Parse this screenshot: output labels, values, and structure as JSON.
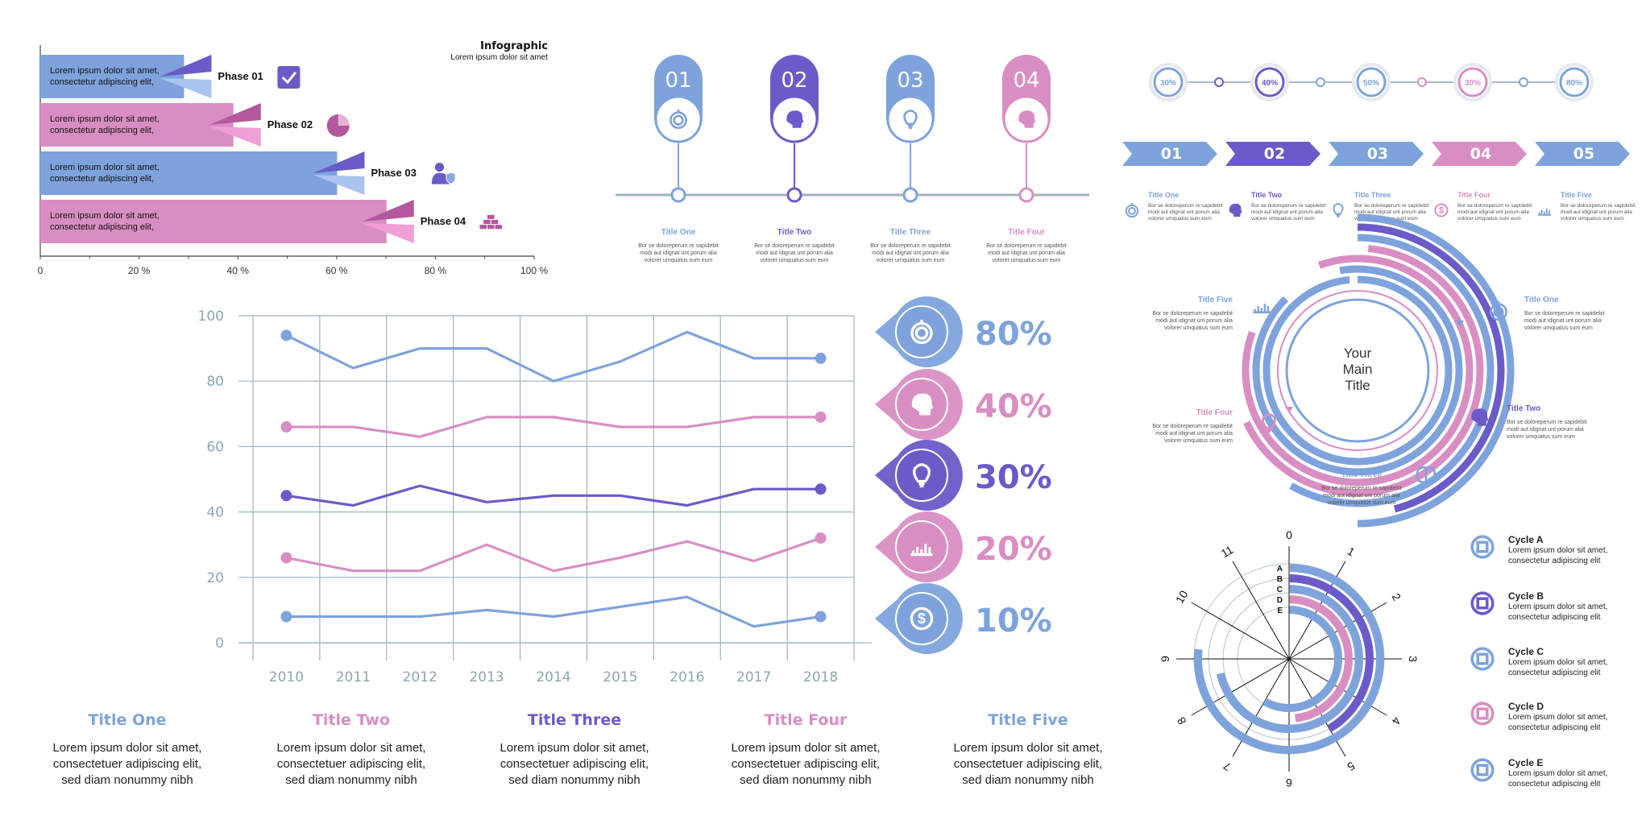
{
  "colors": {
    "blue": "#7ea3dc",
    "pink": "#d98ec3",
    "purple": "#6a5bc9",
    "light_blue": "#a9c4ef",
    "light_pink": "#ef9fd6",
    "grid": "#9fb3bb",
    "axis_text": "#8fa6ad"
  },
  "phase_chart": {
    "title": "Infographic",
    "subtitle": "Lorem ipsum dolor sit amet",
    "bar_text": [
      "Lorem ipsum dolor sit amet,",
      "consectetur adipiscing elit,"
    ],
    "icons": [
      "check-icon",
      "pie-icon",
      "user-shield-icon",
      "gold-bars-icon"
    ]
  },
  "timeline": {
    "steps": [
      {
        "num": "01",
        "title": "Title One",
        "icon": "stopwatch-icon"
      },
      {
        "num": "02",
        "title": "Title Two",
        "icon": "puzzle-head-icon"
      },
      {
        "num": "03",
        "title": "Title Three",
        "icon": "bulb-icon"
      },
      {
        "num": "04",
        "title": "Title Four",
        "icon": "puzzle-head-icon"
      }
    ],
    "body": [
      "Bor se doloreperum re sapidebit",
      "modi aut idignat unt porum alia",
      "volorer umquatus sum eum"
    ]
  },
  "steps_top_right": {
    "percents": [
      "30%",
      "40%",
      "50%",
      "30%",
      "80%"
    ],
    "arrows": [
      "01",
      "02",
      "03",
      "04",
      "05"
    ],
    "titles": [
      "Title One",
      "Title Two",
      "Title Three",
      "Title Four",
      "Title Five"
    ],
    "body": [
      "Bor se doloreperum re sapidebit",
      "modi aut idignat unt porum alia",
      "volorer umquatus sum eum"
    ]
  },
  "radial": {
    "center": [
      "Your",
      "Main",
      "Title"
    ],
    "titles": [
      "Title Five",
      "Title One",
      "Title Two",
      "Title Three",
      "Title Four"
    ],
    "body": [
      "Bor se doloreperum re sapidebit",
      "modi aut idignat unt porum alia",
      "volorer umquatus sum eum"
    ]
  },
  "legend_pins": [
    {
      "value": "80%",
      "icon": "stopwatch-icon"
    },
    {
      "value": "40%",
      "icon": "puzzle-head-icon"
    },
    {
      "value": "30%",
      "icon": "bulb-icon"
    },
    {
      "value": "20%",
      "icon": "chart-icon"
    },
    {
      "value": "10%",
      "icon": "dollar-icon"
    }
  ],
  "bottom_titles": [
    {
      "title": "Title One",
      "lines": [
        "Lorem ipsum dolor sit amet,",
        "consectetuer adipiscing elit,",
        "sed diam nonummy nibh"
      ]
    },
    {
      "title": "Title Two",
      "lines": [
        "Lorem ipsum dolor sit amet,",
        "consectetuer adipiscing elit,",
        "sed diam nonummy nibh"
      ]
    },
    {
      "title": "Title Three",
      "lines": [
        "Lorem ipsum dolor sit amet,",
        "consectetuer adipiscing elit,",
        "sed diam nonummy nibh"
      ]
    },
    {
      "title": "Title Four",
      "lines": [
        "Lorem ipsum dolor sit amet,",
        "consectetuer adipiscing elit,",
        "sed diam nonummy nibh"
      ]
    },
    {
      "title": "Title Five",
      "lines": [
        "Lorem ipsum dolor sit amet,",
        "consectetuer adipiscing elit,",
        "sed diam nonummy nibh"
      ]
    }
  ],
  "cycles": [
    {
      "name": "Cycle A",
      "lines": [
        "Lorem ipsum dolor sit amet,",
        "consectetur adipiscing elit"
      ],
      "icon": "satellite-icon"
    },
    {
      "name": "Cycle B",
      "lines": [
        "Lorem ipsum dolor sit amet,",
        "consectetur adipiscing elit"
      ],
      "icon": "hand-coin-icon"
    },
    {
      "name": "Cycle C",
      "lines": [
        "Lorem ipsum dolor sit amet,",
        "consectetur adipiscing elit"
      ],
      "icon": "handshake-icon"
    },
    {
      "name": "Cycle D",
      "lines": [
        "Lorem ipsum dolor sit amet,",
        "consectetur adipiscing elit"
      ],
      "icon": "magnifier-doc-icon"
    },
    {
      "name": "Cycle E",
      "lines": [
        "Lorem ipsum dolor sit amet,",
        "consectetur adipiscing elit"
      ],
      "icon": "hanging-sign-icon"
    }
  ],
  "chart_data": [
    {
      "type": "bar",
      "orientation": "horizontal",
      "categories": [
        "Phase 01",
        "Phase 02",
        "Phase 03",
        "Phase 04"
      ],
      "values": [
        34,
        44,
        65,
        75
      ],
      "xlim": [
        0,
        100
      ],
      "xticks": [
        "0",
        "20 %",
        "40 %",
        "60 %",
        "80 %",
        "100 %"
      ],
      "bar_colors": [
        "#7ea3dc",
        "#d98ec3",
        "#7ea3dc",
        "#d98ec3"
      ]
    },
    {
      "type": "line",
      "x": [
        "2010",
        "2011",
        "2012",
        "2013",
        "2014",
        "2015",
        "2016",
        "2017",
        "2018"
      ],
      "ylim": [
        0,
        100
      ],
      "yticks": [
        "0",
        "20",
        "40",
        "60",
        "80",
        "100"
      ],
      "grid": true,
      "series": [
        {
          "color": "#7ea3dc",
          "values": [
            94,
            84,
            90,
            90,
            80,
            86,
            95,
            87,
            87
          ]
        },
        {
          "color": "#d98ec3",
          "values": [
            66,
            66,
            63,
            69,
            69,
            66,
            66,
            69,
            69
          ]
        },
        {
          "color": "#6a5bc9",
          "values": [
            45,
            42,
            48,
            43,
            45,
            45,
            42,
            47,
            47
          ]
        },
        {
          "color": "#d98ec3",
          "values": [
            26,
            22,
            22,
            30,
            22,
            26,
            31,
            25,
            32
          ]
        },
        {
          "color": "#7ea3dc",
          "values": [
            8,
            8,
            8,
            10,
            8,
            11,
            14,
            5,
            8
          ]
        }
      ]
    },
    {
      "type": "radial_bar",
      "categories": [
        "A",
        "B",
        "C",
        "D",
        "E"
      ],
      "axis_labels": [
        "0",
        "1",
        "2",
        "3",
        "4",
        "5",
        "6",
        "7",
        "8",
        "9",
        "10",
        "11"
      ],
      "range": [
        0,
        12
      ],
      "values": [
        9.2,
        5.0,
        8.6,
        5.8,
        7.0
      ],
      "bar_colors": [
        "#7ea3dc",
        "#6a5bc9",
        "#7ea3dc",
        "#d98ec3",
        "#7ea3dc"
      ]
    }
  ]
}
